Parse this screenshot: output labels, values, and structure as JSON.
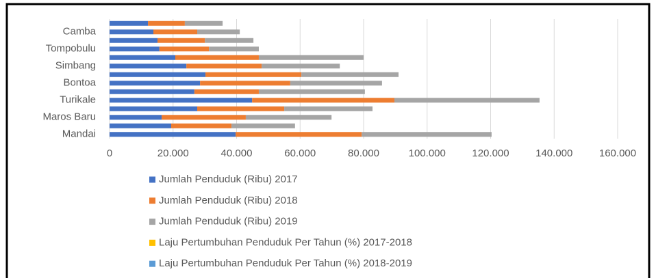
{
  "chart_data": {
    "type": "bar",
    "orientation": "horizontal",
    "stacked": true,
    "categories": [
      "Mandai",
      null,
      "Maros Baru",
      null,
      "Turikale",
      null,
      "Bontoa",
      null,
      "Simbang",
      null,
      "Tompobulu",
      null,
      "Camba",
      null
    ],
    "series": [
      {
        "name": "Jumlah Penduduk (Ribu) 2017",
        "color": "#4472c4",
        "values": [
          39700,
          19400,
          16400,
          27600,
          44900,
          26700,
          28500,
          30200,
          24200,
          20700,
          15700,
          15100,
          13800,
          12100
        ]
      },
      {
        "name": "Jumlah Penduduk (Ribu) 2018",
        "color": "#ed7d31",
        "values": [
          39700,
          19000,
          26500,
          27400,
          44800,
          20300,
          28400,
          30200,
          23700,
          26300,
          15600,
          14900,
          13800,
          11600
        ]
      },
      {
        "name": "Jumlah Penduduk (Ribu) 2019",
        "color": "#a5a5a5",
        "values": [
          40900,
          20000,
          27000,
          27800,
          45700,
          33400,
          28900,
          30600,
          24600,
          33000,
          15700,
          15300,
          13400,
          11900
        ]
      },
      {
        "name": "Laju Pertumbuhan Penduduk Per Tahun (%) 2017-2018",
        "color": "#ffc000",
        "values": [
          1.2,
          1.2,
          1.2,
          1.2,
          1.2,
          1.2,
          1.2,
          1.2,
          1.2,
          1.2,
          1.2,
          1.2,
          1.2,
          1.2
        ]
      },
      {
        "name": "Laju Pertumbuhan Penduduk Per Tahun (%) 2018-2019",
        "color": "#5b9bd5",
        "values": [
          1.2,
          1.2,
          1.2,
          1.2,
          1.2,
          1.2,
          1.2,
          1.2,
          1.2,
          1.2,
          1.2,
          1.2,
          1.2,
          1.2
        ]
      }
    ],
    "xlim": [
      0,
      160000
    ],
    "xticks": [
      0,
      {
        "value": 20000,
        "label": "20.000"
      },
      {
        "value": 40000,
        "label": "40.000"
      },
      {
        "value": 60000,
        "label": "60.000"
      },
      {
        "value": 80000,
        "label": "80.000"
      },
      {
        "value": 100000,
        "label": "100.000"
      },
      {
        "value": 120000,
        "label": "120.000"
      },
      {
        "value": 140000,
        "label": "140.000"
      },
      {
        "value": 160000,
        "label": "160.000"
      }
    ],
    "grid": true,
    "legend": "bottom"
  }
}
